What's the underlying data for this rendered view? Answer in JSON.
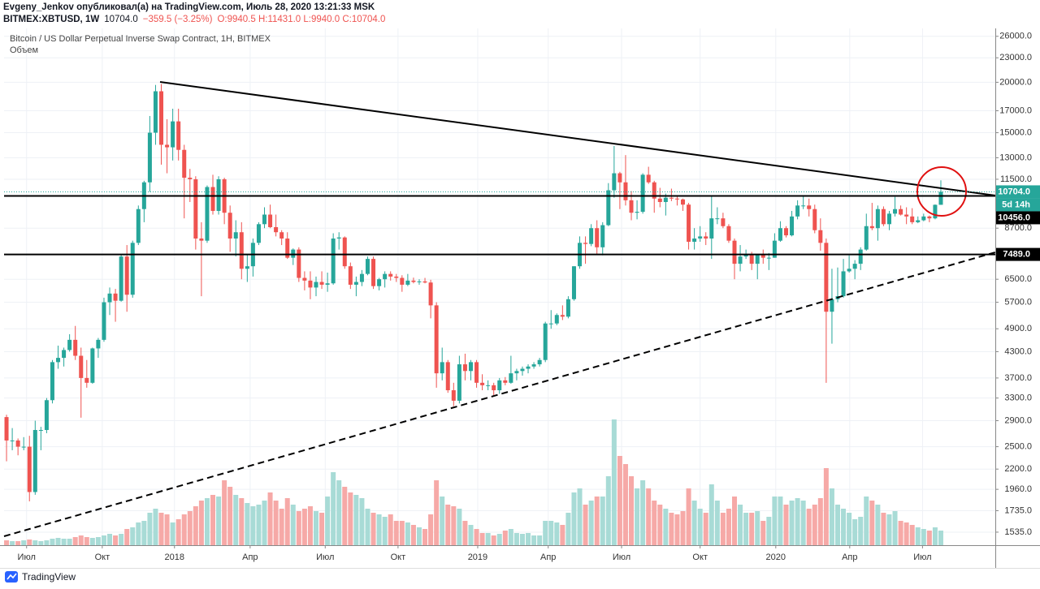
{
  "header": {
    "publisher": "Evgeny_Jenkov опубликовал(а) на TradingView.com, Июль 28, 2020 13:21:33 MSK",
    "symbol": "BITMEX:XBTUSD, 1W",
    "price": "10704.0",
    "change": "−359.5 (−3.25%)",
    "ohlc": "O:9940.5 H:11431.0 L:9940.0 C:10704.0"
  },
  "footer": {
    "brand": "TradingView"
  },
  "chart_data": {
    "type": "candlestick",
    "title": "Bitcoin / US Dollar Perpetual Inverse Swap Contract, 1H, BITMEX",
    "volume_label": "Объем",
    "up_color": "#26a69a",
    "down_color": "#ef5350",
    "volume_up_color": "#a8dbd6",
    "volume_down_color": "#f6a9a7",
    "log_scale": true,
    "grid": true,
    "ylim": [
      1425,
      27200
    ],
    "yticks": [
      {
        "value": 26000,
        "label": "26000.0"
      },
      {
        "value": 23000,
        "label": "23000.0"
      },
      {
        "value": 20000,
        "label": "20000.0"
      },
      {
        "value": 17000,
        "label": "17000.0"
      },
      {
        "value": 15000,
        "label": "15000.0"
      },
      {
        "value": 13000,
        "label": "13000.0"
      },
      {
        "value": 11500,
        "label": "11500.0"
      },
      {
        "value": 8700,
        "label": "8700.0"
      },
      {
        "value": 6500,
        "label": "6500.0"
      },
      {
        "value": 5700,
        "label": "5700.0"
      },
      {
        "value": 4900,
        "label": "4900.0"
      },
      {
        "value": 4300,
        "label": "4300.0"
      },
      {
        "value": 3700,
        "label": "3700.0"
      },
      {
        "value": 3300,
        "label": "3300.0"
      },
      {
        "value": 2900,
        "label": "2900.0"
      },
      {
        "value": 2500,
        "label": "2500.0"
      },
      {
        "value": 2200,
        "label": "2200.0"
      },
      {
        "value": 1960,
        "label": "1960.0"
      },
      {
        "value": 1735,
        "label": "1735.0"
      },
      {
        "value": 1535,
        "label": "1535.0"
      }
    ],
    "xlim": [
      -0.43,
      172.5
    ],
    "xticks": [
      {
        "value": 3.5,
        "label": "Июл"
      },
      {
        "value": 16.7,
        "label": "Окт"
      },
      {
        "value": 29.3,
        "label": "2018"
      },
      {
        "value": 42.5,
        "label": "Апр"
      },
      {
        "value": 55.6,
        "label": "Июл"
      },
      {
        "value": 68.3,
        "label": "Окт"
      },
      {
        "value": 82.2,
        "label": "2019"
      },
      {
        "value": 94.5,
        "label": "Апр"
      },
      {
        "value": 107.3,
        "label": "Июл"
      },
      {
        "value": 121.0,
        "label": "Окт"
      },
      {
        "value": 134.2,
        "label": "2020"
      },
      {
        "value": 147.1,
        "label": "Апр"
      },
      {
        "value": 159.8,
        "label": "Июл"
      }
    ],
    "last_price": {
      "value": 10704,
      "label": "10704.0",
      "countdown": "5d 14h"
    },
    "price_lines": [
      {
        "value": 10456,
        "label": "10456.0"
      },
      {
        "value": 7489,
        "label": "7489.0"
      }
    ],
    "volume_ylim": [
      0,
      637
    ],
    "ohlc": [
      [
        2960,
        3000,
        2300,
        2590
      ],
      [
        2590,
        2780,
        2450,
        2590
      ],
      [
        2590,
        2620,
        2380,
        2500
      ],
      [
        2500,
        2640,
        2450,
        2500
      ],
      [
        2500,
        2660,
        1830,
        1930
      ],
      [
        1930,
        2900,
        1900,
        2750
      ],
      [
        2750,
        2800,
        2450,
        2750
      ],
      [
        2750,
        3300,
        2700,
        3260
      ],
      [
        3260,
        4100,
        3200,
        4050
      ],
      [
        4050,
        4450,
        3900,
        4150
      ],
      [
        4150,
        4400,
        3950,
        4340
      ],
      [
        4340,
        4750,
        4300,
        4600
      ],
      [
        4600,
        4980,
        4100,
        4200
      ],
      [
        4200,
        4400,
        2950,
        3700
      ],
      [
        3700,
        4100,
        3500,
        3600
      ],
      [
        3600,
        4400,
        3580,
        4380
      ],
      [
        4380,
        4650,
        4150,
        4600
      ],
      [
        4600,
        5850,
        4550,
        5700
      ],
      [
        5700,
        6200,
        5300,
        5990
      ],
      [
        5990,
        6150,
        5100,
        5750
      ],
      [
        5750,
        7500,
        5720,
        7400
      ],
      [
        7400,
        7900,
        5400,
        5950
      ],
      [
        5950,
        8100,
        5850,
        8000
      ],
      [
        8000,
        9900,
        7900,
        9700
      ],
      [
        9700,
        11400,
        9000,
        11300
      ],
      [
        11300,
        16500,
        10700,
        15000
      ],
      [
        15000,
        19700,
        14000,
        19000
      ],
      [
        19000,
        19800,
        12500,
        14000
      ],
      [
        14000,
        16200,
        11900,
        13800
      ],
      [
        13800,
        17200,
        12800,
        16000
      ],
      [
        16000,
        17200,
        12800,
        13600
      ],
      [
        13600,
        14000,
        9200,
        11600
      ],
      [
        11600,
        12200,
        10100,
        11500
      ],
      [
        11500,
        11700,
        7700,
        8200
      ],
      [
        8200,
        9000,
        5900,
        8100
      ],
      [
        8100,
        11100,
        8000,
        11000
      ],
      [
        11000,
        11800,
        9400,
        9600
      ],
      [
        9600,
        11700,
        9400,
        11500
      ],
      [
        11500,
        11600,
        8900,
        9500
      ],
      [
        9500,
        9900,
        7600,
        8200
      ],
      [
        8200,
        9100,
        7400,
        8500
      ],
      [
        8500,
        9000,
        6500,
        6900
      ],
      [
        6900,
        7500,
        6400,
        7000
      ],
      [
        7000,
        8200,
        6600,
        8000
      ],
      [
        8000,
        9000,
        7900,
        8900
      ],
      [
        8900,
        9800,
        8700,
        9400
      ],
      [
        9400,
        9950,
        8700,
        8750
      ],
      [
        8750,
        9400,
        8300,
        8500
      ],
      [
        8500,
        8600,
        7900,
        8200
      ],
      [
        8200,
        8500,
        7300,
        7350
      ],
      [
        7350,
        7750,
        7050,
        7700
      ],
      [
        7700,
        7800,
        6400,
        6550
      ],
      [
        6550,
        6800,
        6100,
        6450
      ],
      [
        6450,
        6800,
        5800,
        6200
      ],
      [
        6200,
        6600,
        5900,
        6400
      ],
      [
        6400,
        6800,
        6150,
        6300
      ],
      [
        6300,
        6750,
        6050,
        6350
      ],
      [
        6350,
        8450,
        6300,
        8200
      ],
      [
        8200,
        8500,
        7700,
        8250
      ],
      [
        8250,
        8300,
        6900,
        7000
      ],
      [
        7000,
        7150,
        6150,
        6300
      ],
      [
        6300,
        6600,
        5900,
        6400
      ],
      [
        6400,
        6850,
        6250,
        6700
      ],
      [
        6700,
        7400,
        6650,
        7300
      ],
      [
        7300,
        7400,
        6150,
        6250
      ],
      [
        6250,
        6550,
        6100,
        6500
      ],
      [
        6500,
        6800,
        6200,
        6700
      ],
      [
        6700,
        6800,
        6450,
        6600
      ],
      [
        6600,
        6700,
        6400,
        6550
      ],
      [
        6550,
        6650,
        6050,
        6300
      ],
      [
        6300,
        6700,
        6250,
        6450
      ],
      [
        6450,
        6560,
        6350,
        6400
      ],
      [
        6400,
        6500,
        6300,
        6420
      ],
      [
        6420,
        6550,
        6350,
        6380
      ],
      [
        6380,
        6480,
        5200,
        5600
      ],
      [
        5600,
        5700,
        3500,
        3800
      ],
      [
        3800,
        4400,
        3650,
        4050
      ],
      [
        4050,
        4100,
        3400,
        3450
      ],
      [
        3450,
        3600,
        3150,
        3250
      ],
      [
        3250,
        4200,
        3200,
        4000
      ],
      [
        4000,
        4250,
        3650,
        3850
      ],
      [
        3850,
        4100,
        3650,
        4050
      ],
      [
        4050,
        4100,
        3500,
        3600
      ],
      [
        3600,
        3780,
        3450,
        3550
      ],
      [
        3550,
        3650,
        3450,
        3550
      ],
      [
        3550,
        3600,
        3350,
        3450
      ],
      [
        3450,
        3700,
        3380,
        3650
      ],
      [
        3650,
        3720,
        3550,
        3600
      ],
      [
        3600,
        4200,
        3580,
        3800
      ],
      [
        3800,
        3900,
        3650,
        3850
      ],
      [
        3850,
        3950,
        3750,
        3900
      ],
      [
        3900,
        4000,
        3800,
        3950
      ],
      [
        3950,
        4050,
        3900,
        4000
      ],
      [
        4000,
        4150,
        3950,
        4100
      ],
      [
        4100,
        5100,
        4050,
        5050
      ],
      [
        5050,
        5450,
        4900,
        5050
      ],
      [
        5050,
        5350,
        5000,
        5300
      ],
      [
        5300,
        5600,
        5150,
        5250
      ],
      [
        5250,
        5900,
        5200,
        5800
      ],
      [
        5800,
        7000,
        5750,
        7000
      ],
      [
        7000,
        8300,
        6900,
        8000
      ],
      [
        8000,
        8300,
        7100,
        7950
      ],
      [
        7950,
        8900,
        7850,
        8700
      ],
      [
        8700,
        9100,
        7500,
        7800
      ],
      [
        7800,
        9000,
        7450,
        8850
      ],
      [
        8850,
        11250,
        8800,
        10800
      ],
      [
        10800,
        13900,
        10350,
        11900
      ],
      [
        11900,
        12000,
        9700,
        11300
      ],
      [
        11300,
        13200,
        9900,
        10200
      ],
      [
        10200,
        10750,
        9100,
        9500
      ],
      [
        9500,
        10200,
        9150,
        9550
      ],
      [
        9550,
        11900,
        9450,
        11800
      ],
      [
        11800,
        12350,
        11200,
        11300
      ],
      [
        11300,
        11400,
        9500,
        10300
      ],
      [
        10300,
        10950,
        9800,
        10100
      ],
      [
        10100,
        10600,
        9350,
        10350
      ],
      [
        10350,
        10900,
        10150,
        10300
      ],
      [
        10300,
        10450,
        9900,
        10250
      ],
      [
        10250,
        10300,
        9600,
        9950
      ],
      [
        9950,
        10050,
        7700,
        8050
      ],
      [
        8050,
        8700,
        7700,
        8200
      ],
      [
        8200,
        8800,
        8050,
        8300
      ],
      [
        8300,
        8500,
        7900,
        8200
      ],
      [
        8200,
        10500,
        7300,
        9200
      ],
      [
        9200,
        9800,
        8900,
        9200
      ],
      [
        9200,
        9500,
        8700,
        8800
      ],
      [
        8800,
        8900,
        8000,
        8100
      ],
      [
        8100,
        8200,
        6500,
        7100
      ],
      [
        7100,
        7900,
        6800,
        7400
      ],
      [
        7400,
        7700,
        7300,
        7500
      ],
      [
        7500,
        7600,
        6850,
        7100
      ],
      [
        7100,
        7500,
        6500,
        7500
      ],
      [
        7500,
        7700,
        7100,
        7350
      ],
      [
        7350,
        7550,
        6850,
        7350
      ],
      [
        7350,
        8450,
        7350,
        8100
      ],
      [
        8100,
        9050,
        8050,
        8700
      ],
      [
        8700,
        8800,
        8250,
        8350
      ],
      [
        8350,
        9600,
        8300,
        9300
      ],
      [
        9300,
        10200,
        9150,
        9900
      ],
      [
        9900,
        10500,
        9700,
        9900
      ],
      [
        9900,
        10300,
        9300,
        9700
      ],
      [
        9700,
        9950,
        8450,
        8600
      ],
      [
        8600,
        9200,
        7650,
        8000
      ],
      [
        8000,
        8200,
        3600,
        5400
      ],
      [
        5400,
        6900,
        4500,
        5800
      ],
      [
        5800,
        6950,
        5700,
        5900
      ],
      [
        5900,
        7300,
        5850,
        6800
      ],
      [
        6800,
        7450,
        6750,
        6900
      ],
      [
        6900,
        7250,
        6500,
        7100
      ],
      [
        7100,
        7800,
        6850,
        7700
      ],
      [
        7700,
        9450,
        7650,
        8800
      ],
      [
        8800,
        10050,
        8600,
        8700
      ],
      [
        8700,
        9900,
        8100,
        9700
      ],
      [
        9700,
        9850,
        8800,
        8900
      ],
      [
        8900,
        9600,
        8600,
        9450
      ],
      [
        9450,
        10400,
        9300,
        9700
      ],
      [
        9700,
        9900,
        9350,
        9400
      ],
      [
        9400,
        9800,
        8900,
        9300
      ],
      [
        9300,
        9750,
        8900,
        9000
      ],
      [
        9000,
        9300,
        8950,
        9100
      ],
      [
        9100,
        9450,
        9050,
        9300
      ],
      [
        9300,
        9350,
        9000,
        9200
      ],
      [
        9200,
        9960,
        9150,
        9940
      ],
      [
        9940.5,
        11431,
        9940,
        10704
      ]
    ],
    "volume": [
      6,
      5,
      5,
      6,
      7,
      6,
      5,
      6,
      8,
      9,
      8,
      8,
      10,
      12,
      10,
      9,
      10,
      12,
      14,
      12,
      14,
      20,
      22,
      28,
      30,
      40,
      45,
      40,
      38,
      28,
      32,
      38,
      42,
      48,
      55,
      58,
      62,
      60,
      80,
      72,
      62,
      58,
      52,
      48,
      50,
      55,
      65,
      55,
      45,
      58,
      50,
      42,
      45,
      48,
      42,
      40,
      60,
      90,
      80,
      72,
      65,
      62,
      58,
      45,
      40,
      38,
      35,
      38,
      30,
      30,
      28,
      25,
      22,
      20,
      38,
      80,
      60,
      50,
      48,
      45,
      30,
      25,
      20,
      15,
      15,
      12,
      14,
      18,
      20,
      15,
      14,
      15,
      12,
      12,
      30,
      30,
      28,
      25,
      40,
      65,
      70,
      50,
      55,
      60,
      60,
      85,
      155,
      110,
      100,
      85,
      70,
      80,
      70,
      55,
      50,
      45,
      40,
      38,
      42,
      70,
      55,
      45,
      40,
      75,
      55,
      40,
      45,
      60,
      50,
      40,
      40,
      42,
      30,
      35,
      60,
      60,
      50,
      55,
      58,
      55,
      45,
      50,
      58,
      95,
      70,
      50,
      45,
      40,
      32,
      35,
      60,
      55,
      50,
      40,
      38,
      42,
      30,
      28,
      25,
      22,
      20,
      18,
      22,
      18
    ]
  }
}
